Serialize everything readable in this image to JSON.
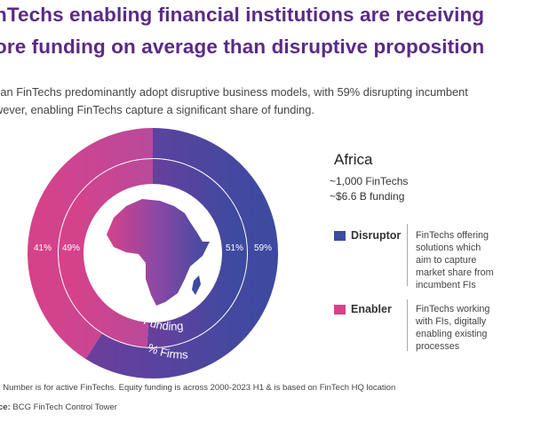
{
  "title_line1": "nTechs enabling financial institutions are receiving",
  "title_line2": "ore funding on average than disruptive proposition",
  "subtitle_line1": "can FinTechs predominantly adopt disruptive business models, with 59% disrupting incumbent",
  "subtitle_line2": "wever, enabling FinTechs capture a significant share of funding.",
  "region": "Africa",
  "stat_fintechs": "~1,000 FinTechs",
  "stat_funding": "~$6.6 B funding",
  "legend": [
    {
      "label": "Disruptor",
      "color": "#3d4aa0",
      "desc": [
        "FinTechs offering",
        "solutions which",
        "aim to capture",
        "market share from",
        "incumbent FIs"
      ]
    },
    {
      "label": "Enabler",
      "color": "#d6428a",
      "desc": [
        "FinTechs working",
        "with FIs, digitally",
        "enabling existing",
        "processes"
      ]
    }
  ],
  "footer_note": ": Number is for active FinTechs. Equity funding is across 2000-2023 H1 & is based on FinTech HQ location",
  "footer_source_label": "ce:",
  "footer_source": " BCG FinTech Control Tower",
  "map_icon": "africa-map-icon",
  "colors": {
    "disruptor": "#3d4aa0",
    "enabler": "#d6428a",
    "title": "#5b2a86"
  },
  "chart_data": {
    "type": "pie",
    "rings": [
      {
        "name": "% Firms",
        "disruptor": 59,
        "enabler": 41,
        "label_disruptor": "59%",
        "label_enabler": "41%"
      },
      {
        "name": "% Funding",
        "disruptor": 51,
        "enabler": 49,
        "label_disruptor": "51%",
        "label_enabler": "49%"
      }
    ]
  }
}
